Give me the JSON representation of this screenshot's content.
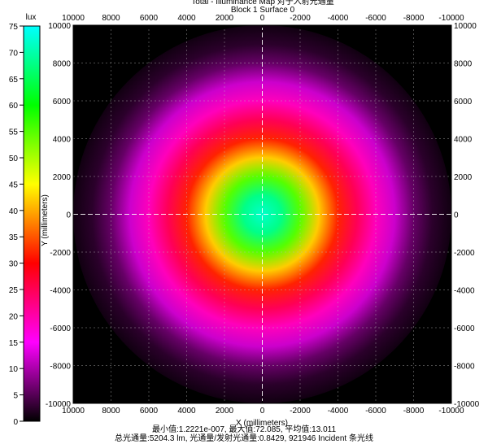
{
  "chart_data": {
    "type": "heatmap",
    "title": "Total - Illuminance Map 对于入射光通量",
    "subtitle": "Block 1 Surface 0",
    "xlabel": "X (millimeters)",
    "ylabel": "Y (millimeters)",
    "xlim": [
      10000,
      -10000
    ],
    "ylim": [
      -10000,
      10000
    ],
    "x_ticks": [
      10000,
      8000,
      6000,
      4000,
      2000,
      0,
      -2000,
      -4000,
      -6000,
      -8000,
      -10000
    ],
    "y_ticks": [
      10000,
      8000,
      6000,
      4000,
      2000,
      0,
      -2000,
      -4000,
      -6000,
      -8000,
      -10000
    ],
    "grid": true,
    "colorbar": {
      "label": "lux",
      "min": 0,
      "max": 75,
      "ticks": [
        75,
        70,
        65,
        60,
        55,
        50,
        45,
        40,
        35,
        30,
        25,
        20,
        15,
        10,
        5,
        0
      ],
      "palette": [
        "#000000",
        "#ff00ff",
        "#ff0000",
        "#ffff00",
        "#00ff00",
        "#00ffff"
      ]
    },
    "radial_profile": {
      "radius_mm": [
        0,
        1000,
        2000,
        3000,
        4000,
        5000,
        6000,
        7000,
        8000,
        9000,
        10000
      ],
      "illuminance_lux": [
        72,
        68,
        55,
        42,
        32,
        25,
        19,
        12,
        6,
        2.5,
        1
      ]
    },
    "stats": {
      "min": "最小值:1.2221e-007",
      "max": "最大值:72.085",
      "mean": "平均值:13.011",
      "line1": "最小值:1.2221e-007, 最大值:72.085, 平均值:13.011",
      "line2": "总光通量:5204.3 lm, 光通量/发射光通量:0.8429, 921946 Incident 条光线"
    }
  }
}
